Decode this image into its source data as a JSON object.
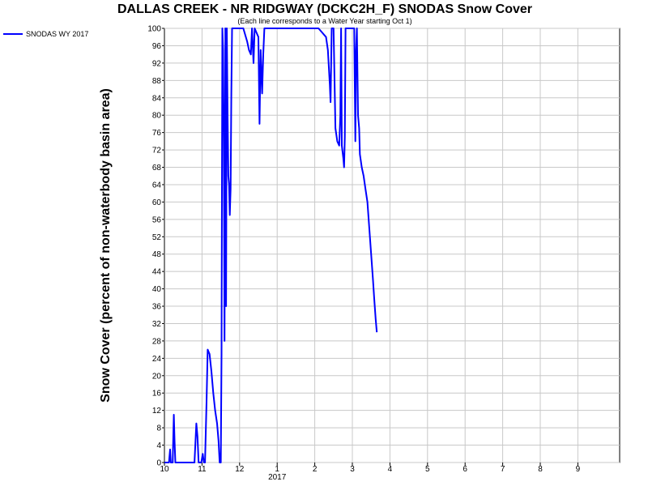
{
  "chart_data": {
    "type": "line",
    "title": "DALLAS CREEK - NR RIDGWAY (DCKC2H_F) SNODAS Snow Cover",
    "subtitle": "(Each line corresponds to a Water Year starting Oct 1)",
    "xlabel": "",
    "ylabel": "Snow Cover (percent of non-waterbody basin area)",
    "ylim": [
      0,
      100
    ],
    "yticks": [
      0,
      4,
      8,
      12,
      16,
      20,
      24,
      28,
      32,
      36,
      40,
      44,
      48,
      52,
      56,
      60,
      64,
      68,
      72,
      76,
      80,
      84,
      88,
      92,
      96,
      100
    ],
    "xlim": [
      10,
      10.9
    ],
    "xticks": [
      {
        "pos": 0,
        "label": "10"
      },
      {
        "pos": 1,
        "label": "11"
      },
      {
        "pos": 2,
        "label": "12"
      },
      {
        "pos": 3,
        "label": "1"
      },
      {
        "pos": 4,
        "label": "2"
      },
      {
        "pos": 5,
        "label": "3"
      },
      {
        "pos": 6,
        "label": "4"
      },
      {
        "pos": 7,
        "label": "5"
      },
      {
        "pos": 8,
        "label": "6"
      },
      {
        "pos": 9,
        "label": "7"
      },
      {
        "pos": 10,
        "label": "8"
      },
      {
        "pos": 11,
        "label": "9"
      }
    ],
    "year_label": {
      "pos": 3,
      "label": "2017"
    },
    "grid": true,
    "legend_position": "top-left outside",
    "series": [
      {
        "name": "SNODAS WY 2017",
        "color": "#0000ff",
        "points": [
          [
            0.0,
            0
          ],
          [
            0.12,
            0
          ],
          [
            0.15,
            3
          ],
          [
            0.17,
            0
          ],
          [
            0.22,
            0
          ],
          [
            0.25,
            11
          ],
          [
            0.27,
            5
          ],
          [
            0.29,
            0
          ],
          [
            0.35,
            0
          ],
          [
            0.6,
            0
          ],
          [
            0.7,
            0
          ],
          [
            0.8,
            0
          ],
          [
            0.85,
            9
          ],
          [
            0.88,
            6
          ],
          [
            0.91,
            0
          ],
          [
            0.98,
            0
          ],
          [
            1.02,
            2
          ],
          [
            1.05,
            0
          ],
          [
            1.08,
            0
          ],
          [
            1.12,
            14
          ],
          [
            1.15,
            26
          ],
          [
            1.2,
            25
          ],
          [
            1.25,
            21
          ],
          [
            1.3,
            16
          ],
          [
            1.35,
            12
          ],
          [
            1.4,
            9
          ],
          [
            1.44,
            5
          ],
          [
            1.47,
            0
          ],
          [
            1.5,
            0
          ],
          [
            1.52,
            25
          ],
          [
            1.54,
            100
          ],
          [
            1.56,
            95
          ],
          [
            1.58,
            74
          ],
          [
            1.6,
            28
          ],
          [
            1.62,
            100
          ],
          [
            1.64,
            36
          ],
          [
            1.66,
            100
          ],
          [
            1.68,
            80
          ],
          [
            1.7,
            66
          ],
          [
            1.72,
            64
          ],
          [
            1.74,
            57
          ],
          [
            1.76,
            63
          ],
          [
            1.78,
            85
          ],
          [
            1.8,
            100
          ],
          [
            1.82,
            100
          ],
          [
            1.9,
            100
          ],
          [
            2.0,
            100
          ],
          [
            2.1,
            100
          ],
          [
            2.2,
            97
          ],
          [
            2.25,
            95
          ],
          [
            2.3,
            94
          ],
          [
            2.33,
            100
          ],
          [
            2.37,
            92
          ],
          [
            2.4,
            100
          ],
          [
            2.45,
            99
          ],
          [
            2.5,
            98
          ],
          [
            2.53,
            78
          ],
          [
            2.56,
            95
          ],
          [
            2.6,
            85
          ],
          [
            2.63,
            94
          ],
          [
            2.66,
            100
          ],
          [
            2.7,
            100
          ],
          [
            3.0,
            100
          ],
          [
            3.5,
            100
          ],
          [
            3.8,
            100
          ],
          [
            4.1,
            100
          ],
          [
            4.2,
            99
          ],
          [
            4.3,
            98
          ],
          [
            4.35,
            95
          ],
          [
            4.4,
            87
          ],
          [
            4.42,
            83
          ],
          [
            4.45,
            100
          ],
          [
            4.5,
            100
          ],
          [
            4.55,
            77
          ],
          [
            4.6,
            74
          ],
          [
            4.65,
            73
          ],
          [
            4.68,
            80
          ],
          [
            4.7,
            100
          ],
          [
            4.72,
            73
          ],
          [
            4.76,
            70
          ],
          [
            4.78,
            68
          ],
          [
            4.8,
            75
          ],
          [
            4.82,
            100
          ],
          [
            4.85,
            100
          ],
          [
            4.9,
            100
          ],
          [
            5.0,
            100
          ],
          [
            5.05,
            100
          ],
          [
            5.08,
            74
          ],
          [
            5.1,
            95
          ],
          [
            5.12,
            100
          ],
          [
            5.15,
            80
          ],
          [
            5.18,
            77
          ],
          [
            5.2,
            71
          ],
          [
            5.25,
            68
          ],
          [
            5.3,
            66
          ],
          [
            5.35,
            63
          ],
          [
            5.4,
            60
          ],
          [
            5.45,
            54
          ],
          [
            5.5,
            48
          ],
          [
            5.55,
            42
          ],
          [
            5.58,
            38
          ],
          [
            5.62,
            33
          ],
          [
            5.65,
            30
          ]
        ]
      }
    ]
  },
  "legend": {
    "entries": [
      {
        "label": "SNODAS WY 2017",
        "color": "#0000ff"
      }
    ]
  }
}
